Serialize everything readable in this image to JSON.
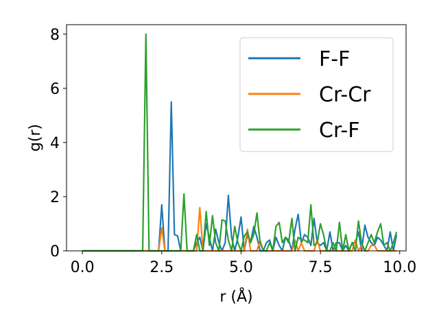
{
  "chart_data": {
    "type": "line",
    "title": "",
    "xlabel": "r (Å)",
    "ylabel": "g(r)",
    "xlim": [
      -0.5,
      10.2
    ],
    "ylim": [
      0,
      8.35
    ],
    "xticks": [
      0.0,
      2.5,
      5.0,
      7.5,
      10.0
    ],
    "xtick_labels": [
      "0.0",
      "2.5",
      "5.0",
      "7.5",
      "10.0"
    ],
    "yticks": [
      0,
      2,
      4,
      6,
      8
    ],
    "ytick_labels": [
      "0",
      "2",
      "4",
      "6",
      "8"
    ],
    "grid": false,
    "legend_position": "top-right",
    "series": [
      {
        "name": "F-F",
        "color": "#1f77b4",
        "x": [
          0.0,
          2.4,
          2.5,
          2.6,
          2.7,
          2.8,
          2.9,
          3.0,
          3.1,
          3.2,
          3.3,
          3.4,
          3.5,
          3.6,
          3.7,
          3.8,
          3.9,
          4.0,
          4.1,
          4.2,
          4.3,
          4.4,
          4.5,
          4.6,
          4.7,
          4.8,
          4.9,
          5.0,
          5.1,
          5.2,
          5.3,
          5.4,
          5.5,
          5.6,
          5.7,
          5.8,
          5.9,
          6.0,
          6.1,
          6.2,
          6.3,
          6.4,
          6.5,
          6.6,
          6.7,
          6.8,
          6.9,
          7.0,
          7.1,
          7.2,
          7.3,
          7.4,
          7.5,
          7.6,
          7.7,
          7.8,
          7.9,
          8.0,
          8.1,
          8.2,
          8.3,
          8.4,
          8.5,
          8.6,
          8.7,
          8.8,
          8.9,
          9.0,
          9.1,
          9.2,
          9.3,
          9.4,
          9.5,
          9.6,
          9.7,
          9.8,
          9.9
        ],
        "values": [
          0.0,
          0.0,
          1.7,
          0.0,
          0.0,
          5.5,
          0.6,
          0.55,
          0.0,
          0.0,
          0.0,
          0.0,
          0.0,
          0.3,
          0.5,
          0.0,
          1.0,
          0.5,
          0.0,
          0.8,
          0.3,
          0.0,
          0.3,
          2.05,
          0.5,
          0.0,
          0.5,
          1.25,
          0.0,
          0.6,
          0.3,
          0.9,
          0.5,
          0.0,
          0.0,
          0.3,
          0.4,
          0.0,
          0.5,
          0.2,
          0.0,
          0.5,
          0.4,
          0.0,
          0.8,
          1.35,
          0.3,
          0.6,
          0.5,
          0.2,
          1.2,
          0.3,
          0.2,
          0.3,
          0.0,
          0.7,
          0.0,
          0.3,
          0.3,
          0.0,
          0.2,
          0.0,
          0.3,
          0.3,
          0.7,
          0.0,
          0.95,
          0.5,
          0.3,
          0.2,
          0.5,
          0.4,
          0.2,
          0.0,
          0.7,
          0.0,
          0.6
        ]
      },
      {
        "name": "Cr-Cr",
        "color": "#ff7f0e",
        "x": [
          0.0,
          2.4,
          2.5,
          2.6,
          2.7,
          2.8,
          2.9,
          3.0,
          3.1,
          3.2,
          3.3,
          3.4,
          3.5,
          3.6,
          3.7,
          3.8,
          3.9,
          4.0,
          4.1,
          4.2,
          4.3,
          4.4,
          4.5,
          4.6,
          4.7,
          4.8,
          4.9,
          5.0,
          5.1,
          5.2,
          5.3,
          5.4,
          5.5,
          5.6,
          5.7,
          5.8,
          5.9,
          6.0,
          6.1,
          6.2,
          6.3,
          6.4,
          6.5,
          6.6,
          6.7,
          6.8,
          6.9,
          7.0,
          7.1,
          7.2,
          7.3,
          7.4,
          7.5,
          7.6,
          7.7,
          7.8,
          7.9,
          8.0,
          8.1,
          8.2,
          8.3,
          8.4,
          8.5,
          8.6,
          8.7,
          8.8,
          8.9,
          9.0,
          9.1,
          9.2,
          9.3,
          9.4,
          9.5,
          9.6,
          9.7,
          9.8,
          9.9
        ],
        "values": [
          0.0,
          0.0,
          0.85,
          0.0,
          0.0,
          0.0,
          0.0,
          0.0,
          0.0,
          0.0,
          0.0,
          0.0,
          0.0,
          0.0,
          1.6,
          0.0,
          0.0,
          0.0,
          0.0,
          0.0,
          0.0,
          0.0,
          0.0,
          0.0,
          0.0,
          0.0,
          0.0,
          0.0,
          0.0,
          0.8,
          0.0,
          0.0,
          0.0,
          0.4,
          0.0,
          0.0,
          0.0,
          0.0,
          0.0,
          0.0,
          0.0,
          0.0,
          0.0,
          0.0,
          0.4,
          0.0,
          0.3,
          0.0,
          0.0,
          0.0,
          0.0,
          0.4,
          0.0,
          0.0,
          0.0,
          0.0,
          0.0,
          0.0,
          0.0,
          0.0,
          0.0,
          0.0,
          0.0,
          0.4,
          0.0,
          0.2,
          0.0,
          0.0,
          0.2,
          0.2,
          0.0,
          0.0,
          0.0,
          0.0,
          0.0,
          0.0,
          0.0
        ]
      },
      {
        "name": "Cr-F",
        "color": "#2ca02c",
        "x": [
          0.0,
          1.9,
          2.0,
          2.1,
          2.2,
          2.3,
          2.4,
          2.5,
          2.6,
          2.7,
          2.8,
          2.9,
          3.0,
          3.1,
          3.2,
          3.3,
          3.4,
          3.5,
          3.6,
          3.7,
          3.8,
          3.9,
          4.0,
          4.1,
          4.2,
          4.3,
          4.4,
          4.5,
          4.6,
          4.7,
          4.8,
          4.9,
          5.0,
          5.1,
          5.2,
          5.3,
          5.4,
          5.5,
          5.6,
          5.7,
          5.8,
          5.9,
          6.0,
          6.1,
          6.2,
          6.3,
          6.4,
          6.5,
          6.6,
          6.7,
          6.8,
          6.9,
          7.0,
          7.1,
          7.2,
          7.3,
          7.4,
          7.5,
          7.6,
          7.7,
          7.8,
          7.9,
          8.0,
          8.1,
          8.2,
          8.3,
          8.4,
          8.5,
          8.6,
          8.7,
          8.8,
          8.9,
          9.0,
          9.1,
          9.2,
          9.3,
          9.4,
          9.5,
          9.6,
          9.7,
          9.8,
          9.9
        ],
        "values": [
          0.0,
          0.0,
          8.0,
          0.0,
          0.0,
          0.0,
          0.0,
          0.0,
          0.0,
          0.0,
          0.0,
          0.0,
          0.0,
          0.0,
          2.1,
          0.0,
          0.0,
          0.0,
          0.6,
          0.0,
          0.0,
          1.45,
          0.2,
          1.3,
          0.3,
          0.0,
          1.15,
          1.1,
          0.4,
          0.0,
          0.9,
          0.3,
          0.0,
          0.55,
          0.7,
          0.3,
          0.6,
          1.4,
          0.3,
          0.0,
          0.0,
          0.3,
          0.0,
          0.9,
          1.05,
          0.3,
          0.5,
          0.3,
          1.2,
          0.0,
          0.5,
          0.4,
          0.4,
          0.3,
          1.7,
          0.2,
          0.3,
          1.0,
          0.6,
          0.0,
          0.0,
          0.3,
          0.0,
          1.05,
          0.0,
          0.6,
          0.0,
          0.3,
          0.0,
          1.1,
          0.3,
          0.0,
          0.3,
          0.6,
          0.3,
          0.7,
          1.0,
          0.2,
          0.3,
          0.0,
          0.3,
          0.7
        ]
      }
    ]
  }
}
